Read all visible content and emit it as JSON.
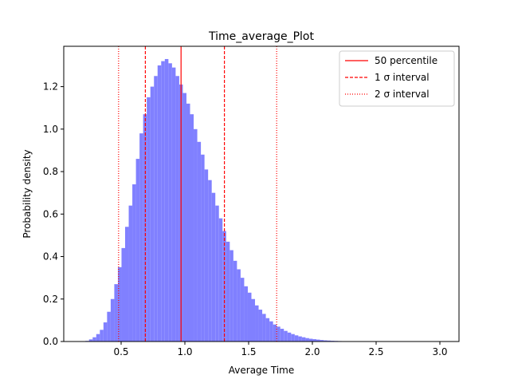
{
  "chart_data": {
    "type": "bar",
    "title": "Time_average_Plot",
    "xlabel": "Average Time",
    "ylabel": "Probability density",
    "xlim": [
      0.05,
      3.15
    ],
    "ylim": [
      0,
      1.39
    ],
    "xticks": [
      0.5,
      1.0,
      1.5,
      2.0,
      2.5,
      3.0
    ],
    "xtick_labels": [
      "0.5",
      "1.0",
      "1.5",
      "2.0",
      "2.5",
      "3.0"
    ],
    "yticks": [
      0.0,
      0.2,
      0.4,
      0.6,
      0.8,
      1.0,
      1.2
    ],
    "ytick_labels": [
      "0.0",
      "0.2",
      "0.4",
      "0.6",
      "0.8",
      "1.0",
      "1.2"
    ],
    "grid": false,
    "legend_position": "top-right",
    "histogram": {
      "color": "#8080ff",
      "bin_width": 0.0283,
      "bin_start": 0.22,
      "density": [
        0.003,
        0.01,
        0.02,
        0.035,
        0.055,
        0.09,
        0.14,
        0.2,
        0.27,
        0.35,
        0.44,
        0.54,
        0.64,
        0.74,
        0.86,
        0.98,
        1.07,
        1.15,
        1.2,
        1.25,
        1.3,
        1.32,
        1.33,
        1.31,
        1.29,
        1.25,
        1.21,
        1.17,
        1.12,
        1.07,
        1.0,
        0.94,
        0.88,
        0.81,
        0.76,
        0.7,
        0.64,
        0.58,
        0.52,
        0.47,
        0.43,
        0.38,
        0.34,
        0.3,
        0.26,
        0.23,
        0.2,
        0.17,
        0.15,
        0.13,
        0.11,
        0.095,
        0.08,
        0.07,
        0.06,
        0.05,
        0.042,
        0.035,
        0.029,
        0.024,
        0.02,
        0.016,
        0.013,
        0.011,
        0.009,
        0.007,
        0.0055,
        0.0045,
        0.0035,
        0.0028,
        0.0022,
        0.0017,
        0.0013,
        0.001,
        0.0008,
        0.0006,
        0.0005,
        0.0004,
        0.0003,
        0.0003,
        0.0002,
        0.0002,
        0.0002,
        0.0001,
        0.0001,
        0.0001,
        0.0001,
        0.0001,
        0.0001,
        0.0001,
        0.0001,
        0.0001,
        0.0001,
        0.0001,
        0.0001,
        0.0001,
        0.0001,
        0.0001,
        0.0001,
        0.0001
      ]
    },
    "vlines": [
      {
        "name": "50 percentile",
        "x": 0.97,
        "style": "solid",
        "color": "#ff0000"
      },
      {
        "name": "1 σ interval",
        "x": 0.69,
        "style": "dashed",
        "color": "#ff0000"
      },
      {
        "name": "1 σ interval",
        "x": 1.31,
        "style": "dashed",
        "color": "#ff0000"
      },
      {
        "name": "2 σ interval",
        "x": 0.48,
        "style": "dotted",
        "color": "#ff0000"
      },
      {
        "name": "2 σ interval",
        "x": 1.72,
        "style": "dotted",
        "color": "#ff0000"
      }
    ],
    "legend": [
      {
        "label": "50 percentile",
        "style": "solid",
        "color": "#ff0000"
      },
      {
        "label": "1 σ interval",
        "style": "dashed",
        "color": "#ff0000"
      },
      {
        "label": "2 σ interval",
        "style": "dotted",
        "color": "#ff0000"
      }
    ]
  }
}
